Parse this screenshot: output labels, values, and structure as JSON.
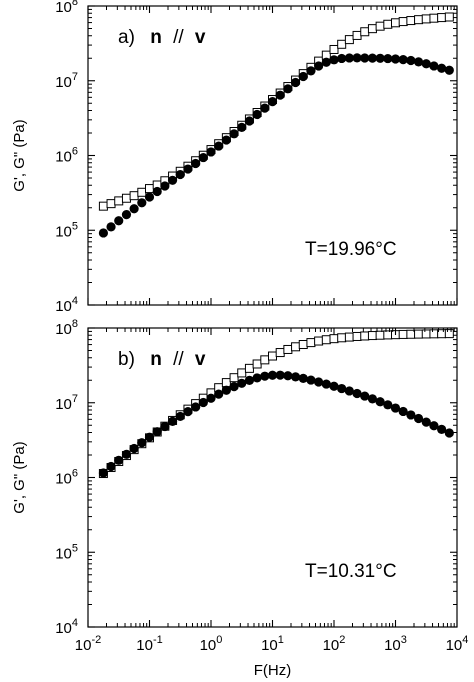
{
  "chart_data": [
    {
      "type": "scatter",
      "panel_label": "a)",
      "orientation": {
        "left": "n",
        "sep": "//",
        "right": "v"
      },
      "annotation": "T=19.96°C",
      "xlabel": "F(Hz)",
      "ylabel": "G', G\" (Pa)",
      "xscale": "log",
      "yscale": "log",
      "xlim": [
        0.01,
        10000
      ],
      "ylim": [
        10000,
        100000000
      ],
      "x_ticks": [
        {
          "base": "10",
          "exp": "-2"
        },
        {
          "base": "10",
          "exp": "-1"
        },
        {
          "base": "10",
          "exp": "0"
        },
        {
          "base": "10",
          "exp": "1"
        },
        {
          "base": "10",
          "exp": "2"
        },
        {
          "base": "10",
          "exp": "3"
        },
        {
          "base": "10",
          "exp": "4"
        }
      ],
      "y_ticks": [
        {
          "base": "10",
          "exp": "4"
        },
        {
          "base": "10",
          "exp": "5"
        },
        {
          "base": "10",
          "exp": "6"
        },
        {
          "base": "10",
          "exp": "7"
        },
        {
          "base": "10",
          "exp": "8"
        }
      ],
      "show_x_ticklabels": false,
      "series": [
        {
          "marker": "open-square",
          "x": [
            0.0178,
            0.0237,
            0.0316,
            0.0422,
            0.0562,
            0.075,
            0.1,
            0.1334,
            0.1778,
            0.2371,
            0.3162,
            0.4217,
            0.5623,
            0.7499,
            1.0,
            1.3335,
            1.7783,
            2.3714,
            3.1623,
            4.217,
            5.6234,
            7.4989,
            10.0,
            13.3352,
            17.7828,
            23.7137,
            31.6228,
            42.1696,
            56.2341,
            74.9894,
            100.0,
            133.3521,
            177.8279,
            237.1374,
            316.2278,
            421.6965,
            562.3413,
            749.8942,
            1000.0,
            1333.5214,
            1778.2794,
            2371.3737,
            3162.2777,
            4216.965,
            5623.4133,
            7498.9421
          ],
          "y": [
            210000,
            227000,
            247000,
            268000,
            290000,
            322000,
            361000,
            403000,
            459000,
            531000,
            615000,
            719000,
            851000,
            1008000,
            1200000,
            1438000,
            1732000,
            2094000,
            2539000,
            3082000,
            3760000,
            4589000,
            5607000,
            6848000,
            8364000,
            10220000,
            12450000,
            15120000,
            18310000,
            22010000,
            26200000,
            30750000,
            35510000,
            40390000,
            45240000,
            49760000,
            53700000,
            56960000,
            59630000,
            61910000,
            63860000,
            65630000,
            67210000,
            68700000,
            70010000,
            71290000
          ]
        },
        {
          "marker": "filled-circle",
          "x": [
            0.0178,
            0.0237,
            0.0316,
            0.0422,
            0.0562,
            0.075,
            0.1,
            0.1334,
            0.1778,
            0.2371,
            0.3162,
            0.4217,
            0.5623,
            0.7499,
            1.0,
            1.3335,
            1.7783,
            2.3714,
            3.1623,
            4.217,
            5.6234,
            7.4989,
            10.0,
            13.3352,
            17.7828,
            23.7137,
            31.6228,
            42.1696,
            56.2341,
            74.9894,
            100.0,
            133.3521,
            177.8279,
            237.1374,
            316.2278,
            421.6965,
            562.3413,
            749.8942,
            1000.0,
            1333.5214,
            1778.2794,
            2371.3737,
            3162.2777,
            4216.965,
            5623.4133,
            7498.9421
          ],
          "y": [
            92000,
            111000,
            134000,
            162000,
            194000,
            233000,
            278000,
            330000,
            391000,
            466000,
            556000,
            659000,
            782000,
            938000,
            1116000,
            1337000,
            1610000,
            1950000,
            2376000,
            2895000,
            3537000,
            4306000,
            5255000,
            6412000,
            7798000,
            9468000,
            11410000,
            13540000,
            15740000,
            17660000,
            19060000,
            19880000,
            20180000,
            20230000,
            20170000,
            20080000,
            19970000,
            19800000,
            19550000,
            19190000,
            18660000,
            17900000,
            16900000,
            15780000,
            14690000,
            13810000
          ]
        }
      ]
    },
    {
      "type": "scatter",
      "panel_label": "b)",
      "orientation": {
        "left": "n",
        "sep": "//",
        "right": "v"
      },
      "annotation": "T=10.31°C",
      "xlabel": "F(Hz)",
      "ylabel": "G', G\" (Pa)",
      "xscale": "log",
      "yscale": "log",
      "xlim": [
        0.01,
        10000
      ],
      "ylim": [
        10000,
        100000000
      ],
      "x_ticks": [
        {
          "base": "10",
          "exp": "-2"
        },
        {
          "base": "10",
          "exp": "-1"
        },
        {
          "base": "10",
          "exp": "0"
        },
        {
          "base": "10",
          "exp": "1"
        },
        {
          "base": "10",
          "exp": "2"
        },
        {
          "base": "10",
          "exp": "3"
        },
        {
          "base": "10",
          "exp": "4"
        }
      ],
      "y_ticks": [
        {
          "base": "10",
          "exp": "4"
        },
        {
          "base": "10",
          "exp": "5"
        },
        {
          "base": "10",
          "exp": "6"
        },
        {
          "base": "10",
          "exp": "7"
        },
        {
          "base": "10",
          "exp": "8"
        }
      ],
      "show_x_ticklabels": true,
      "series": [
        {
          "marker": "open-square",
          "x": [
            0.0178,
            0.0237,
            0.0316,
            0.0422,
            0.0562,
            0.075,
            0.1,
            0.1334,
            0.1778,
            0.2371,
            0.3162,
            0.4217,
            0.5623,
            0.7499,
            1.0,
            1.3335,
            1.7783,
            2.3714,
            3.1623,
            4.217,
            5.6234,
            7.4989,
            10.0,
            13.3352,
            17.7828,
            23.7137,
            31.6228,
            42.1696,
            56.2341,
            74.9894,
            100.0,
            133.3521,
            177.8279,
            237.1374,
            316.2278,
            421.6965,
            562.3413,
            749.8942,
            1000.0,
            1333.5214,
            1778.2794,
            2371.3737,
            3162.2777,
            4216.965,
            5623.4133,
            7498.9421
          ],
          "y": [
            1130000,
            1360000,
            1636000,
            1966000,
            2361000,
            2832000,
            3394000,
            4062000,
            4857000,
            5798000,
            6908000,
            8212000,
            9738000,
            11510000,
            13560000,
            15910000,
            18600000,
            21640000,
            25060000,
            28850000,
            33010000,
            37490000,
            42180000,
            46940000,
            51620000,
            56050000,
            60140000,
            63770000,
            66950000,
            69680000,
            72000000,
            73970000,
            75630000,
            77030000,
            78230000,
            79240000,
            80090000,
            80830000,
            81460000,
            82010000,
            82480000,
            82890000,
            83260000,
            83580000,
            83870000,
            84130000
          ]
        },
        {
          "marker": "filled-circle",
          "x": [
            0.0178,
            0.0237,
            0.0316,
            0.0422,
            0.0562,
            0.075,
            0.1,
            0.1334,
            0.1778,
            0.2371,
            0.3162,
            0.4217,
            0.5623,
            0.7499,
            1.0,
            1.3335,
            1.7783,
            2.3714,
            3.1623,
            4.217,
            5.6234,
            7.4989,
            10.0,
            13.3352,
            17.7828,
            23.7137,
            31.6228,
            42.1696,
            56.2341,
            74.9894,
            100.0,
            133.3521,
            177.8279,
            237.1374,
            316.2278,
            421.6965,
            562.3413,
            749.8942,
            1000.0,
            1333.5214,
            1778.2794,
            2371.3737,
            3162.2777,
            4216.965,
            5623.4133,
            7498.9421
          ],
          "y": [
            1150000,
            1403000,
            1698000,
            2042000,
            2447000,
            2918000,
            3463000,
            4090000,
            4809000,
            5630000,
            6562000,
            7611000,
            8785000,
            10080000,
            11500000,
            13040000,
            14690000,
            16430000,
            18210000,
            19940000,
            21490000,
            22680000,
            23320000,
            23380000,
            22960000,
            22200000,
            21210000,
            20100000,
            18940000,
            17770000,
            16610000,
            15480000,
            14380000,
            13310000,
            12280000,
            11280000,
            10310000,
            9380000,
            8490000,
            7650000,
            6870000,
            6150000,
            5500000,
            4920000,
            4400000,
            3940000
          ]
        }
      ]
    }
  ]
}
